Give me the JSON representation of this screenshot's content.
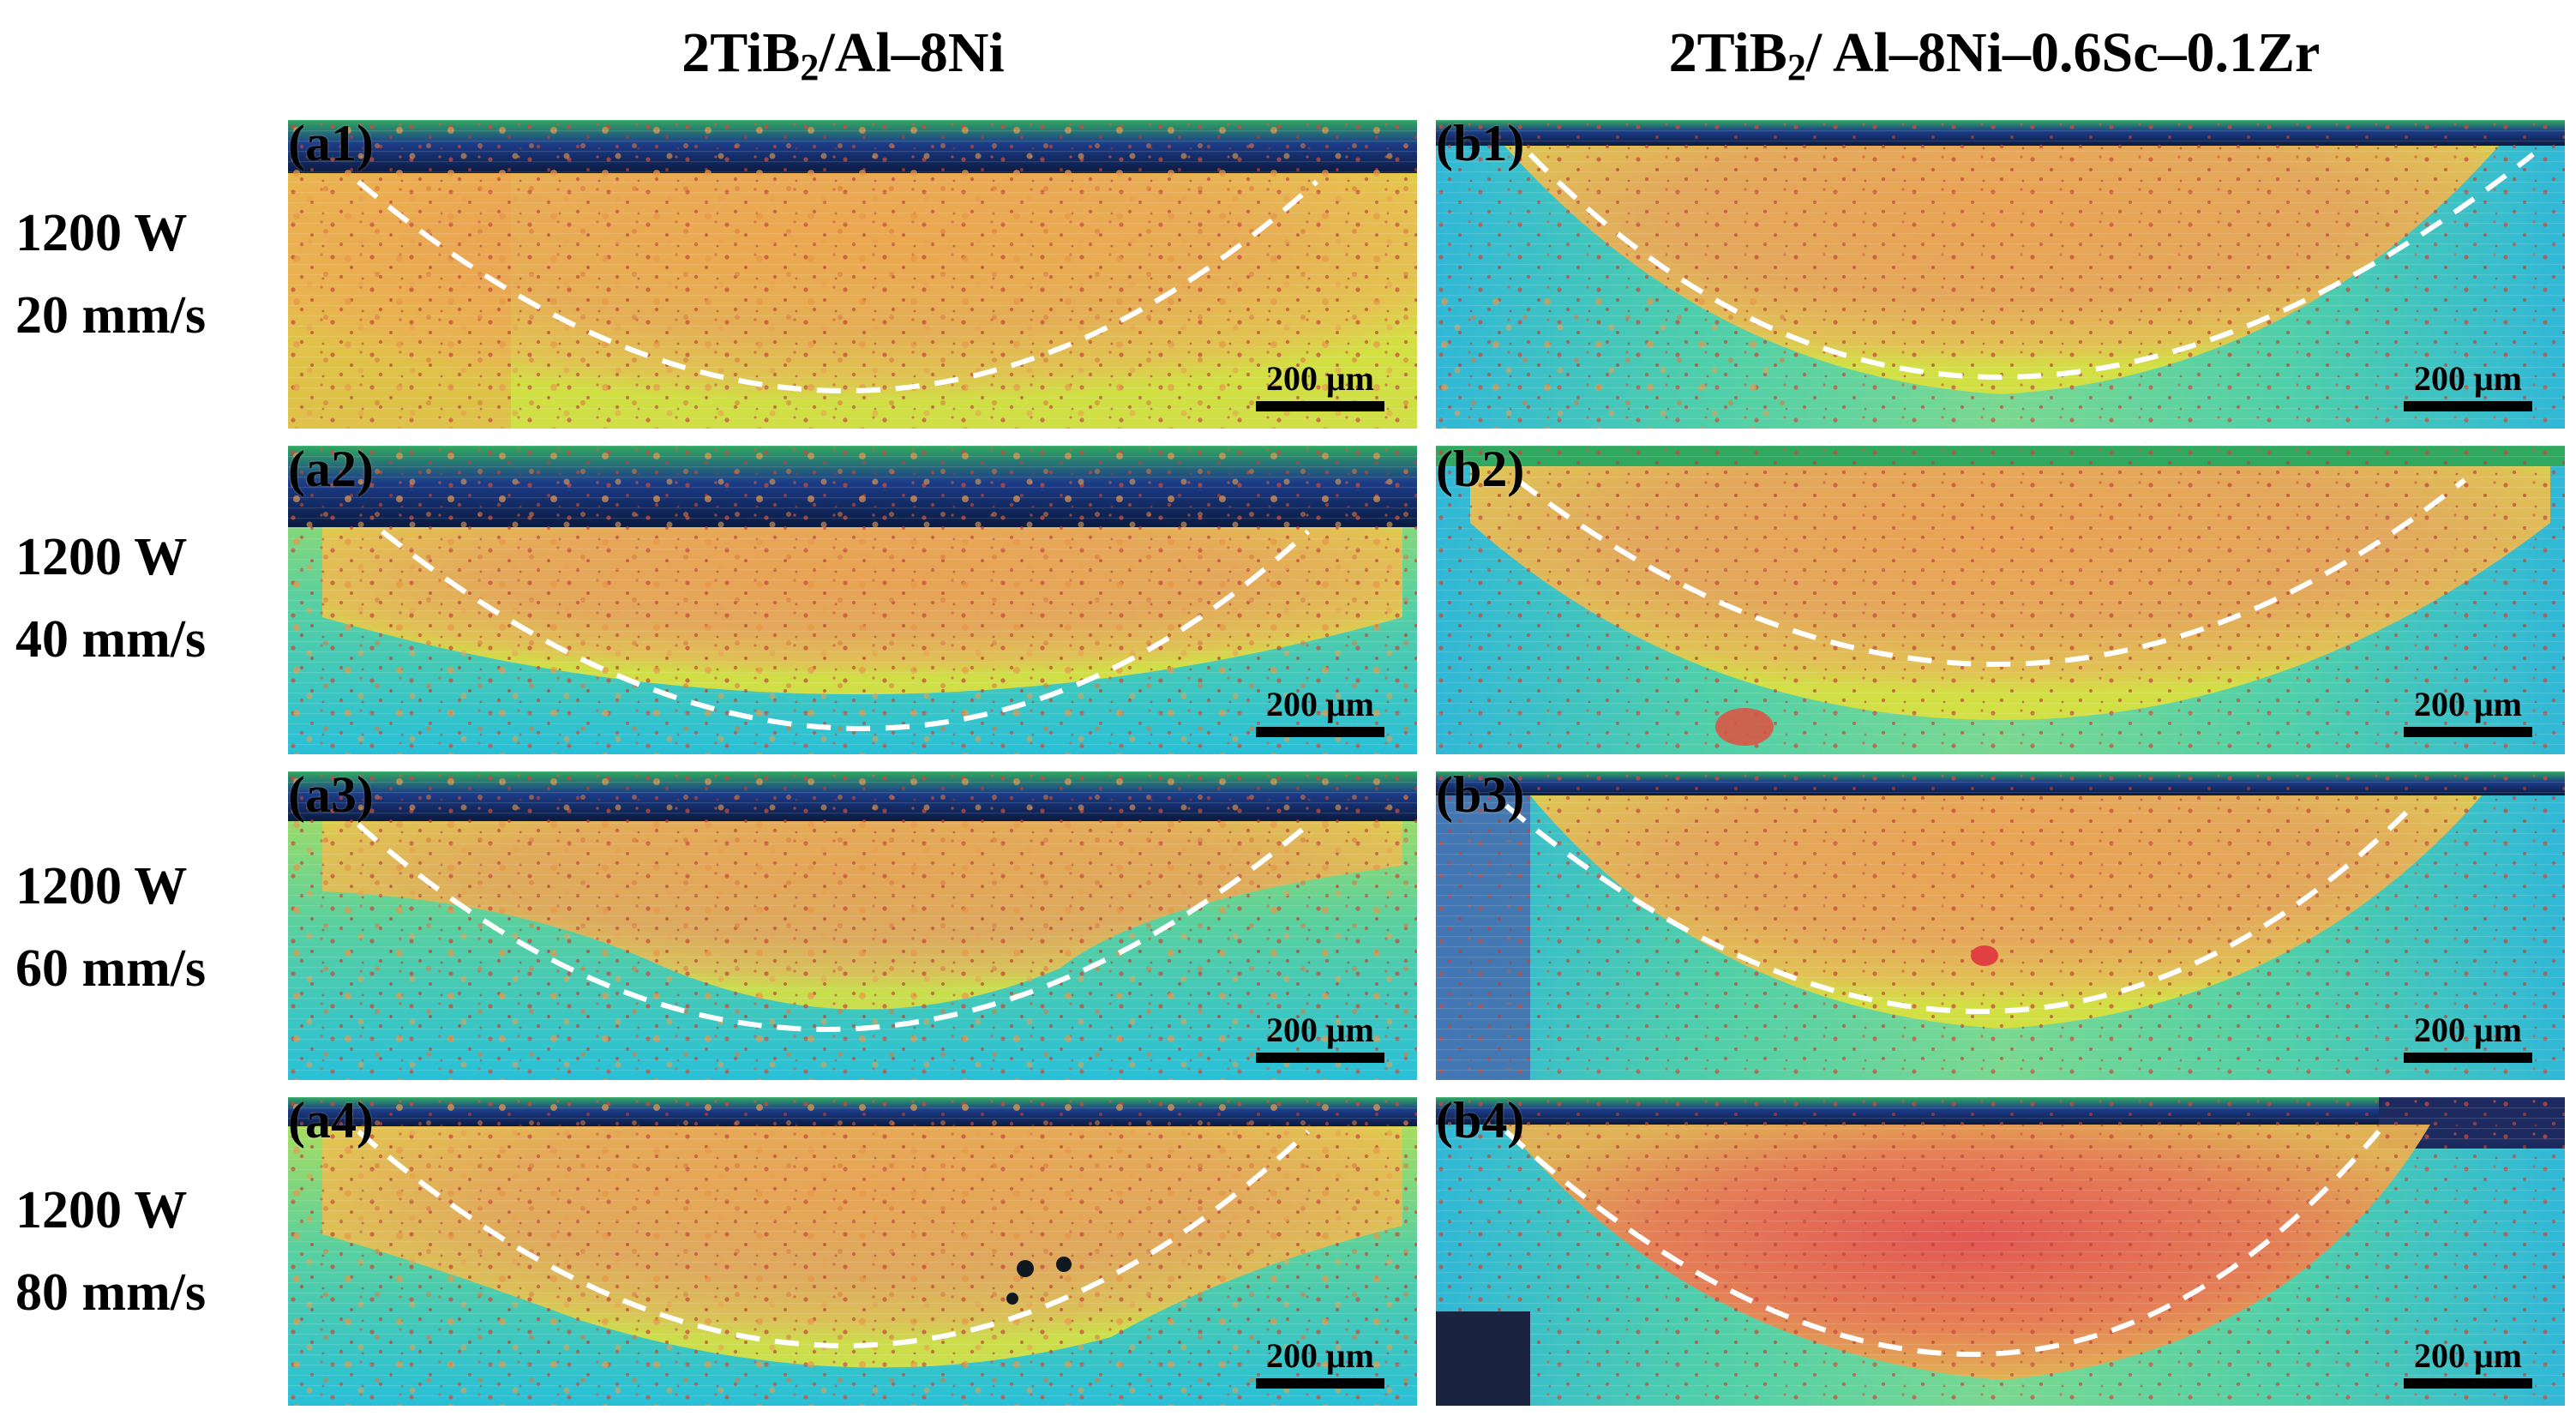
{
  "columns": [
    {
      "prefix": "2TiB",
      "subscript": "2",
      "suffix": "/Al–8Ni"
    },
    {
      "prefix": "2TiB",
      "subscript": "2",
      "suffix": "/ Al–8Ni–0.6Sc–0.1Zr"
    }
  ],
  "rows": [
    {
      "power": "1200 W",
      "speed": "20 mm/s"
    },
    {
      "power": "1200 W",
      "speed": "40 mm/s"
    },
    {
      "power": "1200 W",
      "speed": "60 mm/s"
    },
    {
      "power": "1200 W",
      "speed": "80 mm/s"
    }
  ],
  "panels": {
    "a": [
      "(a1)",
      "(a2)",
      "(a3)",
      "(a4)"
    ],
    "b": [
      "(b1)",
      "(b2)",
      "(b3)",
      "(b4)"
    ]
  },
  "scale_bar_label": "200 μm",
  "colors": {
    "melt_pool_core": "#f0a050",
    "hot_spot": "#e0504a",
    "mid": "#d8e040",
    "edge_cool": "#28c0d8",
    "cold": "#2850a0",
    "boundary_line": "#ffffff"
  }
}
